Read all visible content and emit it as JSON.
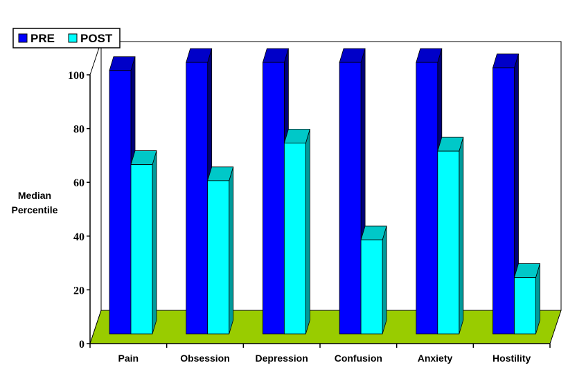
{
  "chart_data": {
    "type": "bar",
    "categories": [
      "Pain",
      "Obsession",
      "Depression",
      "Confusion",
      "Anxiety",
      "Hostility"
    ],
    "series": [
      {
        "name": "PRE",
        "values": [
          98,
          101,
          101,
          101,
          101,
          99
        ],
        "color": "#0000ff",
        "top_color": "#0000c8",
        "side_color": "#00007a"
      },
      {
        "name": "POST",
        "values": [
          63,
          57,
          71,
          35,
          68,
          21
        ],
        "color": "#00ffff",
        "top_color": "#00c8c8",
        "side_color": "#009a9a"
      }
    ],
    "ylabel": [
      "Median",
      "Percentile"
    ],
    "xlabel": "",
    "ylim": [
      0,
      100
    ],
    "yticks": [
      "0",
      "20",
      "40",
      "60",
      "80",
      "100"
    ],
    "grid": false,
    "legend_position": "top-left",
    "floor_color": "#99cc00",
    "background_color": "#ffffff",
    "style": "3d-clustered-column"
  }
}
